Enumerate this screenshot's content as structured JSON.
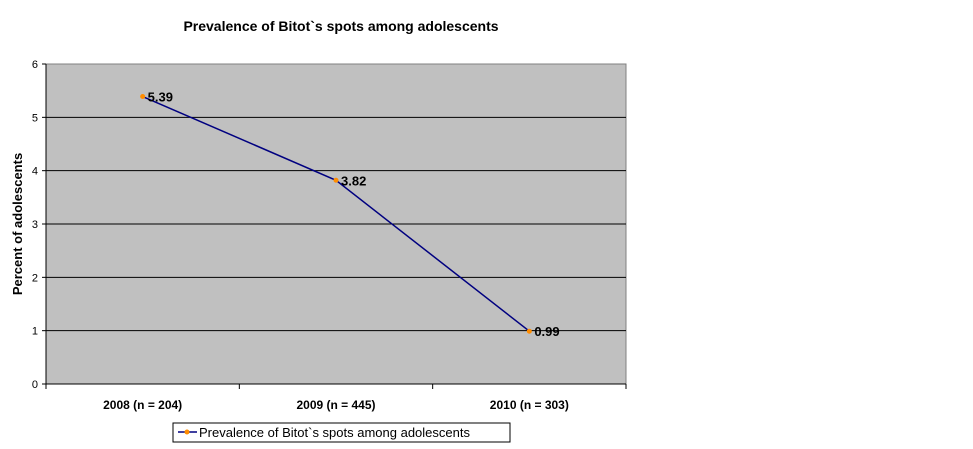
{
  "chart_data": {
    "type": "line",
    "title": "Prevalence of Bitot`s spots among adolescents",
    "ylabel": "Percent of adolescents",
    "xlabel": "",
    "categories": [
      "2008 (n = 204)",
      "2009 (n = 445)",
      "2010 (n = 303)"
    ],
    "series": [
      {
        "name": "Prevalence of Bitot`s spots among adolescents",
        "values": [
          5.39,
          3.82,
          0.99
        ],
        "data_labels": [
          "5.39",
          "3.82",
          "0.99"
        ],
        "line_color": "#000080",
        "marker_color": "#FF8C00"
      }
    ],
    "ylim": [
      0,
      6
    ],
    "yticks": [
      "0",
      "1",
      "2",
      "3",
      "4",
      "5",
      "6"
    ],
    "grid": true,
    "plot_background": "#C0C0C0",
    "legend": "bottom"
  }
}
